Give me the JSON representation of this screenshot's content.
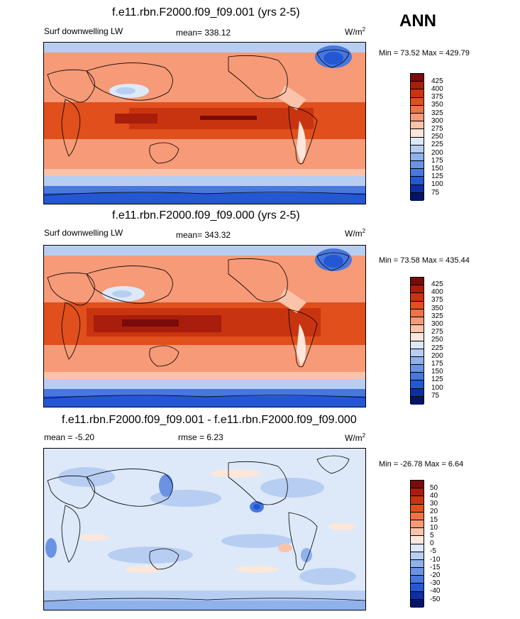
{
  "season": "ANN",
  "panels": [
    {
      "title": "f.e11.rbn.F2000.f09_f09.001 (yrs 2-5)",
      "left_label": "Surf downwelling LW",
      "center_label": "mean= 338.12",
      "units": "W/m",
      "units_sup": "2",
      "minmax": "Min =  73.52 Max = 429.79",
      "colorbar_labels": [
        "425",
        "400",
        "375",
        "350",
        "325",
        "300",
        "275",
        "250",
        "225",
        "200",
        "175",
        "150",
        "125",
        "100",
        "75"
      ],
      "colorbar_colors": [
        "#7a0b0b",
        "#a81d0c",
        "#c93410",
        "#e04f1c",
        "#ef7346",
        "#f79a77",
        "#fbc3aa",
        "#fde7da",
        "#dde9f8",
        "#b7cef2",
        "#8fb1ec",
        "#6b93e4",
        "#4877dd",
        "#2457d3",
        "#0e2ea6",
        "#051565"
      ]
    },
    {
      "title": "f.e11.rbn.F2000.f09_f09.000 (yrs 2-5)",
      "left_label": "Surf downwelling LW",
      "center_label": "mean= 343.32",
      "units": "W/m",
      "units_sup": "2",
      "minmax": "Min =  73.58 Max = 435.44",
      "colorbar_labels": [
        "425",
        "400",
        "375",
        "350",
        "325",
        "300",
        "275",
        "250",
        "225",
        "200",
        "175",
        "150",
        "125",
        "100",
        "75"
      ],
      "colorbar_colors": [
        "#7a0b0b",
        "#a81d0c",
        "#c93410",
        "#e04f1c",
        "#ef7346",
        "#f79a77",
        "#fbc3aa",
        "#fde7da",
        "#dde9f8",
        "#b7cef2",
        "#8fb1ec",
        "#6b93e4",
        "#4877dd",
        "#2457d3",
        "#0e2ea6",
        "#051565"
      ]
    },
    {
      "title": "f.e11.rbn.F2000.f09_f09.001 - f.e11.rbn.F2000.f09_f09.000",
      "left_label": "mean =  -5.20",
      "center_label": "rmse =   6.23",
      "units": "W/m",
      "units_sup": "2",
      "minmax": "Min = -26.78 Max =   6.64",
      "colorbar_labels": [
        "50",
        "40",
        "30",
        "20",
        "15",
        "10",
        "5",
        "0",
        "-5",
        "-10",
        "-15",
        "-20",
        "-30",
        "-40",
        "-50"
      ],
      "colorbar_colors": [
        "#7a0b0b",
        "#a81d0c",
        "#c93410",
        "#e04f1c",
        "#ef7346",
        "#f79a77",
        "#fbc3aa",
        "#fde7da",
        "#dde9f8",
        "#b7cef2",
        "#8fb1ec",
        "#6b93e4",
        "#4877dd",
        "#2457d3",
        "#0e2ea6",
        "#051565"
      ]
    }
  ]
}
